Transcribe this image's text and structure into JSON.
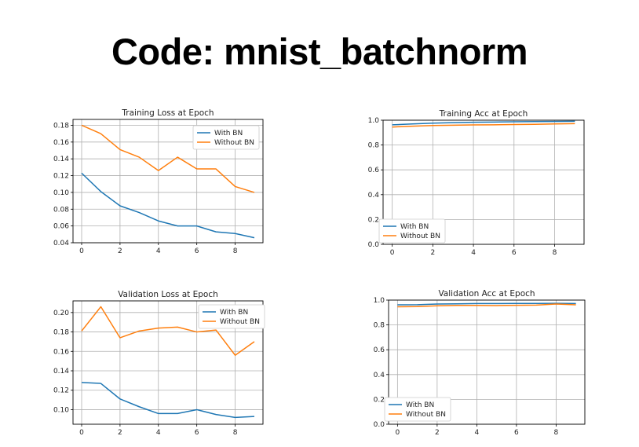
{
  "slide": {
    "title": "Code: mnist_batchnorm"
  },
  "colors": {
    "with_bn": "#1f77b4",
    "without_bn": "#ff7f0e",
    "grid": "#b0b0b0"
  },
  "chart_data": [
    {
      "id": "train-loss",
      "type": "line",
      "title": "Training Loss at Epoch",
      "xlabel": "",
      "ylabel": "",
      "x": [
        0,
        1,
        2,
        3,
        4,
        5,
        6,
        7,
        8,
        9
      ],
      "xlim": [
        -0.45,
        9.45
      ],
      "ylim": [
        0.04,
        0.187
      ],
      "xticks": [
        0,
        2,
        4,
        6,
        8
      ],
      "yticks": [
        0.04,
        0.06,
        0.08,
        0.1,
        0.12,
        0.14,
        0.16,
        0.18
      ],
      "ytick_labels": [
        "0.04",
        "0.06",
        "0.08",
        "0.10",
        "0.12",
        "0.14",
        "0.16",
        "0.18"
      ],
      "grid": true,
      "legend_position": "upper right",
      "series": [
        {
          "name": "With BN",
          "color": "#1f77b4",
          "values": [
            0.123,
            0.101,
            0.084,
            0.076,
            0.066,
            0.06,
            0.06,
            0.053,
            0.051,
            0.046
          ]
        },
        {
          "name": "Without BN",
          "color": "#ff7f0e",
          "values": [
            0.18,
            0.17,
            0.151,
            0.142,
            0.126,
            0.142,
            0.128,
            0.128,
            0.107,
            0.1
          ]
        }
      ]
    },
    {
      "id": "train-acc",
      "type": "line",
      "title": "Training Acc at Epoch",
      "xlabel": "",
      "ylabel": "",
      "x": [
        0,
        1,
        2,
        3,
        4,
        5,
        6,
        7,
        8,
        9
      ],
      "xlim": [
        -0.45,
        9.45
      ],
      "ylim": [
        0.0,
        1.0
      ],
      "xticks": [
        0,
        2,
        4,
        6,
        8
      ],
      "yticks": [
        0.0,
        0.2,
        0.4,
        0.6,
        0.8,
        1.0
      ],
      "ytick_labels": [
        "0.0",
        "0.2",
        "0.4",
        "0.6",
        "0.8",
        "1.0"
      ],
      "grid": true,
      "legend_position": "lower left",
      "series": [
        {
          "name": "With BN",
          "color": "#1f77b4",
          "values": [
            0.963,
            0.97,
            0.976,
            0.98,
            0.983,
            0.985,
            0.987,
            0.989,
            0.99,
            0.991
          ]
        },
        {
          "name": "Without BN",
          "color": "#ff7f0e",
          "values": [
            0.945,
            0.952,
            0.957,
            0.96,
            0.962,
            0.963,
            0.965,
            0.967,
            0.97,
            0.972
          ]
        }
      ]
    },
    {
      "id": "val-loss",
      "type": "line",
      "title": "Validation Loss at Epoch",
      "xlabel": "",
      "ylabel": "",
      "x": [
        0,
        1,
        2,
        3,
        4,
        5,
        6,
        7,
        8,
        9
      ],
      "xlim": [
        -0.45,
        9.45
      ],
      "ylim": [
        0.085,
        0.212
      ],
      "xticks": [
        0,
        2,
        4,
        6,
        8
      ],
      "yticks": [
        0.1,
        0.12,
        0.14,
        0.16,
        0.18,
        0.2
      ],
      "ytick_labels": [
        "0.10",
        "0.12",
        "0.14",
        "0.16",
        "0.18",
        "0.20"
      ],
      "grid": true,
      "legend_position": "upper right",
      "series": [
        {
          "name": "With BN",
          "color": "#1f77b4",
          "values": [
            0.128,
            0.127,
            0.111,
            0.103,
            0.096,
            0.096,
            0.1,
            0.095,
            0.092,
            0.093
          ]
        },
        {
          "name": "Without BN",
          "color": "#ff7f0e",
          "values": [
            0.181,
            0.206,
            0.174,
            0.181,
            0.184,
            0.185,
            0.18,
            0.182,
            0.156,
            0.17
          ]
        }
      ]
    },
    {
      "id": "val-acc",
      "type": "line",
      "title": "Validation Acc at Epoch",
      "xlabel": "",
      "ylabel": "",
      "x": [
        0,
        1,
        2,
        3,
        4,
        5,
        6,
        7,
        8,
        9
      ],
      "xlim": [
        -0.45,
        9.45
      ],
      "ylim": [
        0.0,
        1.0
      ],
      "xticks": [
        0,
        2,
        4,
        6,
        8
      ],
      "yticks": [
        0.0,
        0.2,
        0.4,
        0.6,
        0.8,
        1.0
      ],
      "ytick_labels": [
        "0.0",
        "0.2",
        "0.4",
        "0.6",
        "0.8",
        "1.0"
      ],
      "grid": true,
      "legend_position": "lower left",
      "series": [
        {
          "name": "With BN",
          "color": "#1f77b4",
          "values": [
            0.962,
            0.963,
            0.968,
            0.97,
            0.972,
            0.972,
            0.973,
            0.973,
            0.974,
            0.972
          ]
        },
        {
          "name": "Without BN",
          "color": "#ff7f0e",
          "values": [
            0.946,
            0.948,
            0.954,
            0.957,
            0.957,
            0.956,
            0.958,
            0.96,
            0.968,
            0.962
          ]
        }
      ]
    }
  ]
}
